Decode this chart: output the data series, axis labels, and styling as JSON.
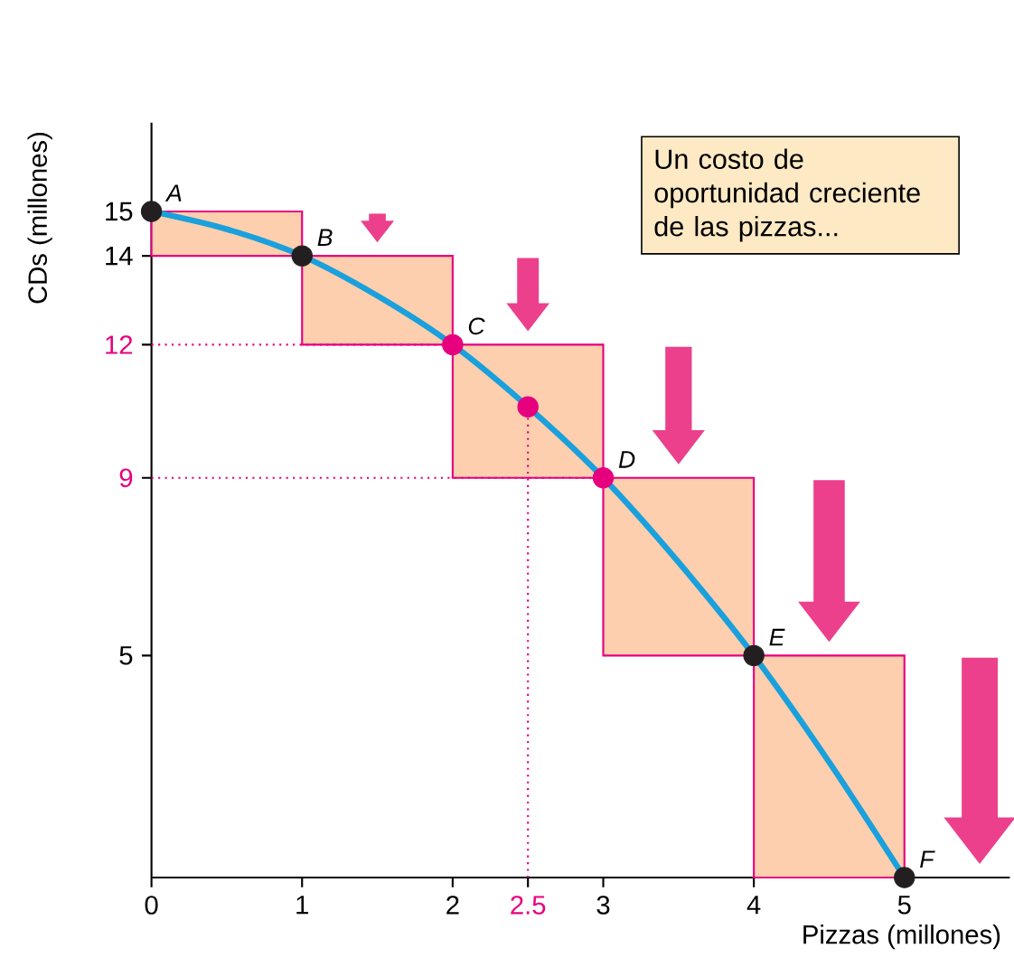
{
  "chart_data": {
    "type": "line",
    "xlabel": "Pizzas (millones)",
    "ylabel": "CDs (millones)",
    "xlim": [
      0,
      5.7
    ],
    "ylim": [
      0,
      17
    ],
    "xticks": [
      0,
      1,
      2,
      2.5,
      3,
      4,
      5
    ],
    "yticks": [
      5,
      9,
      12,
      14,
      15
    ],
    "series": [
      {
        "type": "bar",
        "color": "#fdcfae",
        "x": [
          0.5,
          1.5,
          2.5,
          3.5,
          4.5
        ],
        "values": [
          1,
          2,
          3,
          4,
          5
        ],
        "base": [
          14,
          12,
          9,
          5,
          0
        ]
      },
      {
        "color": "#1aa0dc",
        "x": [
          0,
          0.5,
          1,
          1.5,
          2,
          2.5,
          3,
          3.5,
          4,
          4.5,
          5
        ],
        "values": [
          15,
          14.6,
          14,
          13.1,
          12,
          10.6,
          9,
          7.1,
          5,
          2.6,
          0
        ]
      },
      {
        "type": "scatter",
        "marker": "circle",
        "x": [
          0,
          1,
          2,
          2.5,
          3,
          4,
          5
        ],
        "values": [
          15,
          14,
          12,
          10.6,
          9,
          5,
          0
        ],
        "colors": [
          "#231f20",
          "#231f20",
          "#e6007e",
          "#e6007e",
          "#e6007e",
          "#231f20",
          "#231f20"
        ]
      }
    ],
    "ref_lines": [
      {
        "axis": "y",
        "value": 12,
        "color": "#e6007e",
        "line_style": "dotted"
      },
      {
        "axis": "y",
        "value": 9,
        "color": "#e6007e",
        "line_style": "dotted"
      },
      {
        "axis": "x",
        "value": 2.5,
        "color": "#e6007e",
        "line_style": "dotted"
      }
    ],
    "annotations": [
      {
        "text": "A",
        "x": 0,
        "y": 15
      },
      {
        "text": "B",
        "x": 1,
        "y": 14
      },
      {
        "text": "C",
        "x": 2,
        "y": 12
      },
      {
        "text": "D",
        "x": 3,
        "y": 9
      },
      {
        "text": "E",
        "x": 4,
        "y": 5
      },
      {
        "text": "F",
        "x": 5,
        "y": 0
      },
      "Un costo de oportunidad creciente de las pizzas..."
    ],
    "grid": false,
    "line_style": "solid"
  }
}
